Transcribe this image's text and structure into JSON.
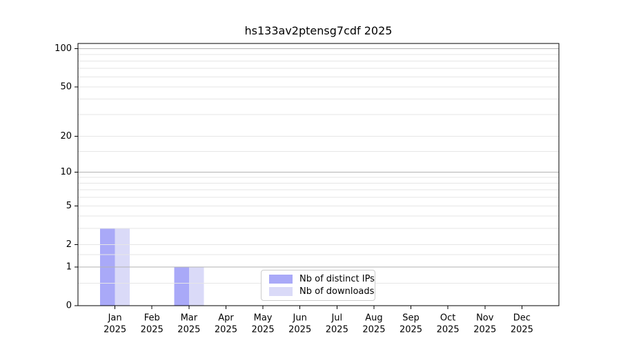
{
  "figure": {
    "background": "#ffffff"
  },
  "chart_data": {
    "type": "bar",
    "title": "hs133av2ptensg7cdf 2025",
    "x_categories": [
      {
        "month": "Jan",
        "year": "2025"
      },
      {
        "month": "Feb",
        "year": "2025"
      },
      {
        "month": "Mar",
        "year": "2025"
      },
      {
        "month": "Apr",
        "year": "2025"
      },
      {
        "month": "May",
        "year": "2025"
      },
      {
        "month": "Jun",
        "year": "2025"
      },
      {
        "month": "Jul",
        "year": "2025"
      },
      {
        "month": "Aug",
        "year": "2025"
      },
      {
        "month": "Sep",
        "year": "2025"
      },
      {
        "month": "Oct",
        "year": "2025"
      },
      {
        "month": "Nov",
        "year": "2025"
      },
      {
        "month": "Dec",
        "year": "2025"
      }
    ],
    "series": [
      {
        "name": "Nb of distinct IPs",
        "color": "#a9a9f8",
        "values": [
          3,
          0,
          1,
          0,
          0,
          0,
          0,
          0,
          0,
          0,
          0,
          0
        ]
      },
      {
        "name": "Nb of downloads",
        "color": "#dadaf8",
        "values": [
          3,
          0,
          1,
          0,
          0,
          0,
          0,
          0,
          0,
          0,
          0,
          0
        ]
      }
    ],
    "yscale": "log1p",
    "ylim": [
      0,
      110
    ],
    "yticks": [
      0,
      1,
      2,
      5,
      10,
      20,
      50,
      100
    ],
    "ygrid_major": [
      1,
      10,
      100
    ],
    "ygrid_minor": [
      0.5,
      1.5,
      2,
      3,
      4,
      5,
      6,
      7,
      8,
      9,
      15,
      20,
      30,
      40,
      50,
      60,
      70,
      80,
      90
    ],
    "legend_position": "lower center",
    "colors": {
      "grid_major": "#b2b2b2",
      "grid_minor": "#e6e6e6",
      "spine": "#000000",
      "text": "#000000"
    }
  }
}
